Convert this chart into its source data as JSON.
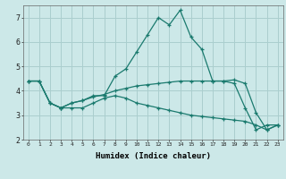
{
  "x": [
    0,
    1,
    2,
    3,
    4,
    5,
    6,
    7,
    8,
    9,
    10,
    11,
    12,
    13,
    14,
    15,
    16,
    17,
    18,
    19,
    20,
    21,
    22,
    23
  ],
  "line1": [
    4.4,
    4.4,
    3.5,
    3.3,
    3.5,
    3.6,
    3.8,
    3.8,
    4.6,
    4.9,
    5.6,
    6.3,
    7.0,
    6.7,
    7.3,
    6.2,
    5.7,
    4.4,
    4.4,
    4.3,
    3.3,
    2.4,
    2.6,
    2.6
  ],
  "line2": [
    4.4,
    4.4,
    3.5,
    3.3,
    3.5,
    3.6,
    3.75,
    3.85,
    4.0,
    4.1,
    4.2,
    4.25,
    4.3,
    4.35,
    4.4,
    4.4,
    4.4,
    4.4,
    4.4,
    4.45,
    4.3,
    3.1,
    2.4,
    2.6
  ],
  "line3": [
    4.4,
    4.4,
    3.5,
    3.3,
    3.3,
    3.3,
    3.5,
    3.7,
    3.8,
    3.7,
    3.5,
    3.4,
    3.3,
    3.2,
    3.1,
    3.0,
    2.95,
    2.9,
    2.85,
    2.8,
    2.75,
    2.6,
    2.4,
    2.6
  ],
  "line_color": "#1a7a6e",
  "bg_color": "#cce8e8",
  "grid_color": "#aacece",
  "xlabel": "Humidex (Indice chaleur)",
  "ylim": [
    2.0,
    7.5
  ],
  "xlim": [
    -0.5,
    23.5
  ],
  "yticks": [
    2,
    3,
    4,
    5,
    6,
    7
  ],
  "xticks": [
    0,
    1,
    2,
    3,
    4,
    5,
    6,
    7,
    8,
    9,
    10,
    11,
    12,
    13,
    14,
    15,
    16,
    17,
    18,
    19,
    20,
    21,
    22,
    23
  ]
}
